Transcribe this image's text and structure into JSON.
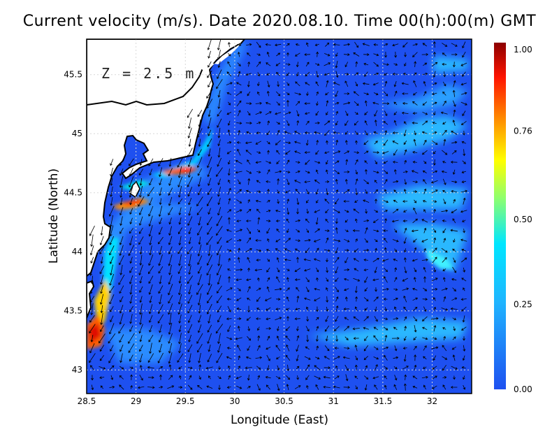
{
  "title": "Current velocity (m/s). Date 2020.08.10. Time 00(h):00(m) GMT",
  "depth_label": "Z = 2.5 m",
  "x_axis": {
    "label": "Longitude (East)",
    "ticks": [
      "28.5",
      "29",
      "29.5",
      "30",
      "30.5",
      "31",
      "31.5",
      "32"
    ],
    "range": [
      28.5,
      32.4
    ]
  },
  "y_axis": {
    "label": "Latitude (North)",
    "ticks": [
      "43",
      "43.5",
      "44",
      "44.5",
      "45",
      "45.5"
    ],
    "range": [
      42.8,
      45.8
    ]
  },
  "colorbar": {
    "ticks": [
      "0.00",
      "0.25",
      "0.50",
      "0.76",
      "1.00"
    ],
    "range": [
      0,
      1.0
    ]
  },
  "colors": {
    "low": "#1e50f0",
    "mid": "#00e6ff",
    "high": "#ff2000",
    "max": "#8c0000",
    "land": "#ffffff",
    "coast": "#000000"
  },
  "grid": true
}
